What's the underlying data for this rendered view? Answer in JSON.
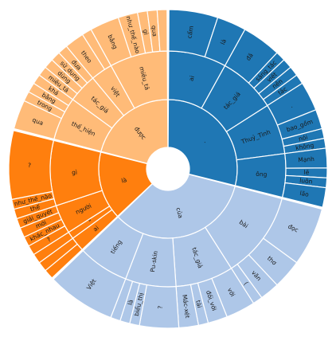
{
  "chart_data": {
    "type": "sunburst",
    "colors": {
      "blue": "#1f77b4",
      "light_blue": "#aec7e8",
      "orange": "#ff7f0e",
      "light_orange": "#ffbb78"
    },
    "root": {
      "children": [
        {
          "label": ".",
          "color": "blue",
          "value": 29,
          "children": [
            {
              "label": "ai",
              "value": 8,
              "children": [
                {
                  "label": "cẩm",
                  "value": 5
                },
                {
                  "label": "là",
                  "value": 3
                }
              ]
            },
            {
              "label": "tác_giả",
              "value": 8,
              "children": [
                {
                  "label": "đã",
                  "value": 4
                },
                {
                  "label": "sáng_tác",
                  "value": 1
                },
                {
                  "label": "viết",
                  "value": 1
                },
                {
                  "label": "nên",
                  "value": 1
                },
                {
                  "label": "tác",
                  "value": 1
                }
              ]
            },
            {
              "label": "Thuỷ_Tinh",
              "value": 7,
              "children": [
                {
                  "label": ".",
                  "value": 3
                },
                {
                  "label": "bao_gồm",
                  "value": 2
                },
                {
                  "label": "nói",
                  "value": 1
                },
                {
                  "label": "không",
                  "value": 1
                }
              ]
            },
            {
              "label": "ông",
              "value": 6,
              "children": [
                {
                  "label": "Mạnh",
                  "value": 2
                },
                {
                  "label": "lẽ",
                  "value": 1
                },
                {
                  "label": "luôn",
                  "value": 1
                },
                {
                  "label": "lão",
                  "value": 2
                }
              ]
            }
          ]
        },
        {
          "label": "của",
          "color": "light_blue",
          "value": 34,
          "children": [
            {
              "label": "bài",
              "value": 12,
              "children": [
                {
                  "label": "đọc",
                  "value": 6
                },
                {
                  "label": "thơ",
                  "value": 3
                },
                {
                  "label": "văn",
                  "value": 2
                },
                {
                  "label": "(",
                  "value": 1
                }
              ]
            },
            {
              "label": "tác_giả",
              "value": 8,
              "children": [
                {
                  "label": "với",
                  "value": 3
                },
                {
                  "label": "đối_với",
                  "value": 2
                },
                {
                  "label": "tài",
                  "value": 1
                },
                {
                  "label": "Mác-xét",
                  "value": 2
                }
              ]
            },
            {
              "label": "Pu-skin",
              "value": 7,
              "children": [
                {
                  "label": "?",
                  "value": 4
                },
                {
                  "label": "biểu_thị",
                  "value": 1
                },
                {
                  "label": "là",
                  "value": 1
                },
                {
                  "label": "",
                  "value": 1
                }
              ]
            },
            {
              "label": "tiếng",
              "value": 7,
              "children": [
                {
                  "label": "Việt",
                  "value": 7
                }
              ]
            }
          ]
        },
        {
          "label": "là",
          "color": "orange",
          "value": 16,
          "children": [
            {
              "label": "ai",
              "value": 2,
              "children": [
                {
                  "label": "",
                  "value": 1
                },
                {
                  "label": "",
                  "value": 1
                }
              ]
            },
            {
              "label": "\"",
              "value": 1,
              "children": [
                {
                  "label": "",
                  "value": 1
                }
              ]
            },
            {
              "label": "người",
              "value": 4,
              "children": [
                {
                  "label": "?",
                  "value": 1
                },
                {
                  "label": "khác_nhau",
                  "value": 1
                },
                {
                  "label": "mới",
                  "value": 1
                },
                {
                  "label": "giải_quyết",
                  "value": 1
                }
              ]
            },
            {
              "label": "gì",
              "value": 9,
              "children": [
                {
                  "label": "thế",
                  "value": 1
                },
                {
                  "label": "như_thế_nào",
                  "value": 1
                },
                {
                  "label": "?",
                  "value": 7
                }
              ]
            }
          ]
        },
        {
          "label": "được",
          "color": "light_orange",
          "value": 21,
          "children": [
            {
              "label": "thể_hiện",
              "value": 6,
              "children": [
                {
                  "label": "qua",
                  "value": 3
                },
                {
                  "label": "trong",
                  "value": 1
                },
                {
                  "label": "bằng",
                  "value": 1
                },
                {
                  "label": "khá",
                  "value": 1
                }
              ]
            },
            {
              "label": "tác_giả",
              "value": 4,
              "children": [
                {
                  "label": "miêu_tả",
                  "value": 1
                },
                {
                  "label": "dùng",
                  "value": 1
                },
                {
                  "label": "sử_dụng",
                  "value": 1
                },
                {
                  "label": "đưa",
                  "value": 1
                }
              ]
            },
            {
              "label": "việt",
              "value": 3,
              "children": [
                {
                  "label": "theo",
                  "value": 2
                },
                {
                  "label": "",
                  "value": 1
                }
              ]
            },
            {
              "label": "miêu_tả",
              "value": 8,
              "children": [
                {
                  "label": "bằng",
                  "value": 3
                },
                {
                  "label": "như_thế_nào",
                  "value": 2
                },
                {
                  "label": "gì",
                  "value": 1
                },
                {
                  "label": "qua",
                  "value": 1
                },
                {
                  "label": "",
                  "value": 1
                }
              ]
            }
          ]
        }
      ]
    }
  }
}
